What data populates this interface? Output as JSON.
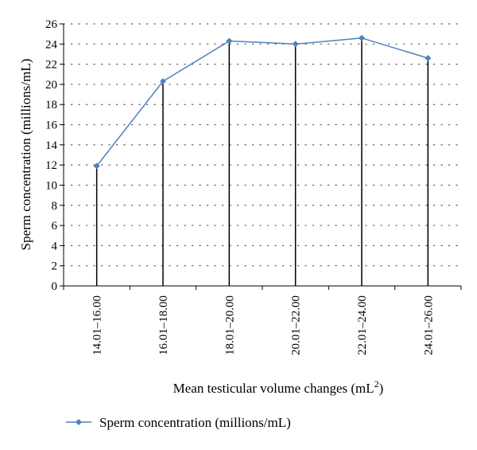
{
  "chart_data": {
    "type": "line",
    "categories": [
      "14.01–16.00",
      "16.01–18.00",
      "18.01–20.00",
      "20.01–22.00",
      "22.01–24.00",
      "24.01–26.00"
    ],
    "series": [
      {
        "name": "Sperm concentration (millions/mL)",
        "values": [
          11.9,
          20.3,
          24.3,
          24.0,
          24.6,
          22.6
        ],
        "color": "#4f81bd",
        "marker": "diamond"
      }
    ],
    "drop_lines": true,
    "ylabel": "Sperm concentration (millions/mL)",
    "xlabel": "Mean testicular volume changes (mL",
    "xlabel_superscript": "2",
    "xlabel_suffix": ")",
    "ylim": [
      0,
      26
    ],
    "y_ticks": [
      "0",
      "2",
      "4",
      "6",
      "8",
      "10",
      "12",
      "14",
      "16",
      "18",
      "20",
      "22",
      "24",
      "26"
    ],
    "grid": "dotted horizontal",
    "legend": "bottom-left"
  }
}
